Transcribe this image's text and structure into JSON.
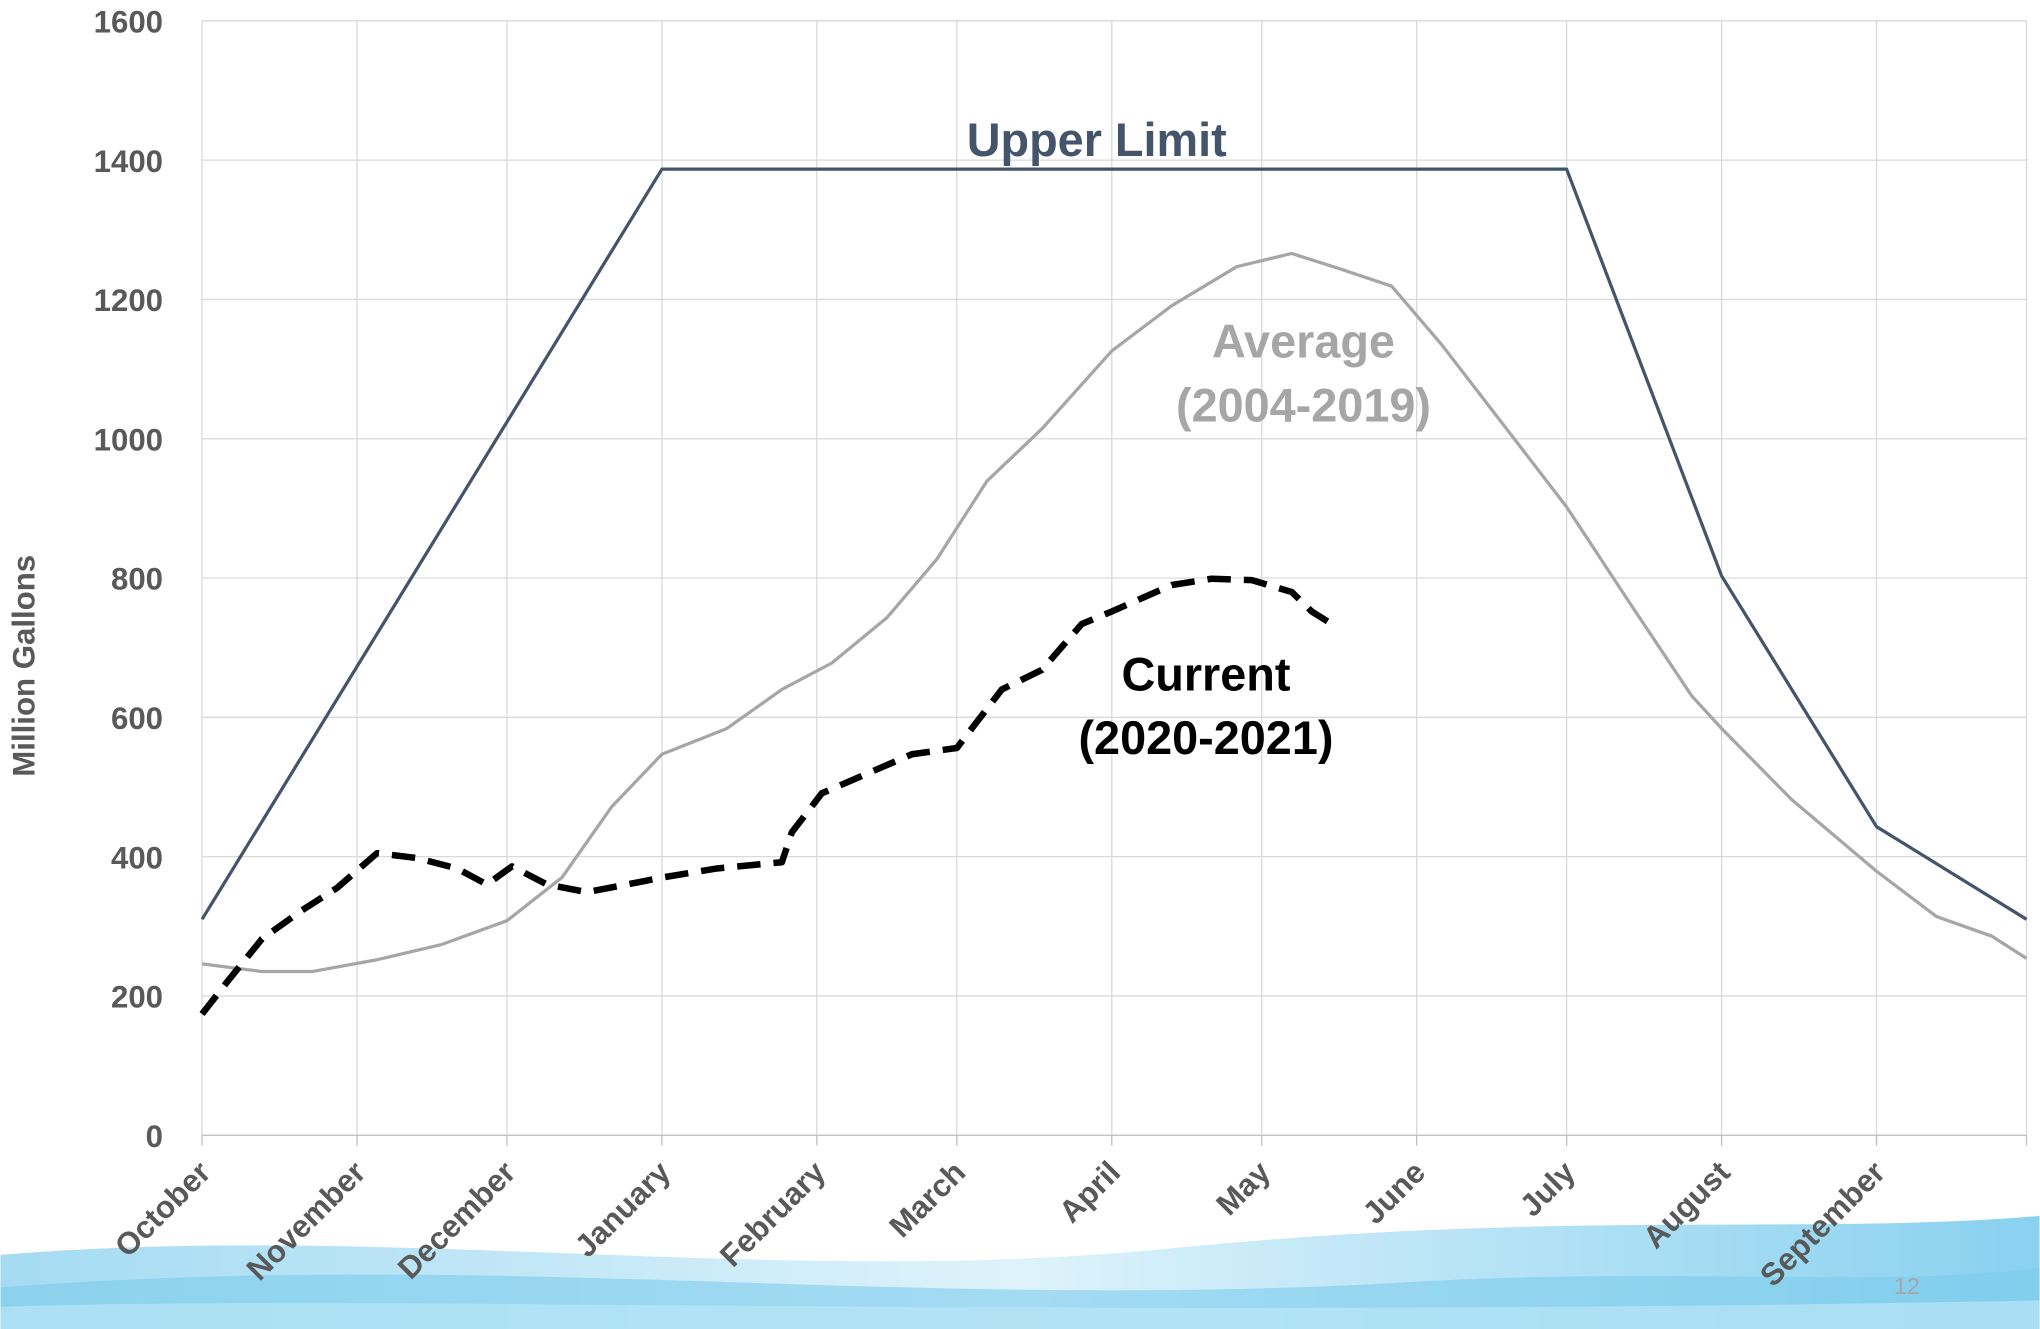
{
  "chart_data": {
    "type": "line",
    "y_label": "Million Gallons",
    "xlim": [
      0,
      365
    ],
    "xticks": [
      {
        "value": 0,
        "label": "October"
      },
      {
        "value": 31,
        "label": "November"
      },
      {
        "value": 61,
        "label": "December"
      },
      {
        "value": 92,
        "label": "January"
      },
      {
        "value": 123,
        "label": "February"
      },
      {
        "value": 151,
        "label": "March"
      },
      {
        "value": 182,
        "label": "April"
      },
      {
        "value": 212,
        "label": "May"
      },
      {
        "value": 243,
        "label": "June"
      },
      {
        "value": 273,
        "label": "July"
      },
      {
        "value": 304,
        "label": "August"
      },
      {
        "value": 335,
        "label": "September"
      },
      {
        "value": 365,
        "label": ""
      }
    ],
    "ylim": [
      0,
      1600
    ],
    "yticks": [
      0,
      200,
      400,
      600,
      800,
      1000,
      1200,
      1400,
      1600
    ],
    "grid": true,
    "series": [
      {
        "name": "Upper Limit",
        "label_lines": [
          "Upper Limit"
        ],
        "color": "#44546a",
        "dashed": false,
        "x": [
          0,
          92,
          273,
          304,
          335,
          365
        ],
        "values": [
          310,
          1387,
          1387,
          803,
          443,
          310
        ]
      },
      {
        "name": "Average (2004-2019)",
        "label_lines": [
          "Average",
          "(2004-2019)"
        ],
        "color": "#a6a6a6",
        "dashed": false,
        "x": [
          0,
          12,
          22,
          35,
          48,
          61,
          72,
          82,
          92,
          105,
          116,
          126,
          137,
          147,
          157,
          168,
          182,
          194,
          207,
          218,
          228,
          238,
          248,
          261,
          273,
          285,
          298,
          304,
          318,
          335,
          347,
          358,
          365
        ],
        "values": [
          246,
          235,
          235,
          252,
          274,
          308,
          370,
          472,
          547,
          584,
          640,
          678,
          743,
          827,
          939,
          1014,
          1126,
          1191,
          1247,
          1266,
          1243,
          1219,
          1135,
          1014,
          902,
          771,
          631,
          584,
          482,
          379,
          314,
          286,
          254
        ]
      },
      {
        "name": "Current (2020-2021)",
        "label_lines": [
          "Current",
          "(2020-2021)"
        ],
        "color": "#000000",
        "dashed": true,
        "x": [
          0,
          5,
          12,
          20,
          27,
          35,
          43,
          51,
          57,
          62,
          69,
          77,
          85,
          92,
          103,
          116,
          118,
          124,
          133,
          142,
          151,
          160,
          168,
          176,
          182,
          194,
          202,
          210,
          218,
          222,
          226
        ],
        "values": [
          174,
          220,
          282,
          323,
          355,
          405,
          398,
          383,
          360,
          386,
          360,
          349,
          360,
          370,
          383,
          392,
          435,
          491,
          519,
          547,
          556,
          640,
          668,
          734,
          752,
          790,
          799,
          797,
          780,
          752,
          734
        ]
      }
    ],
    "page_number": "12"
  }
}
